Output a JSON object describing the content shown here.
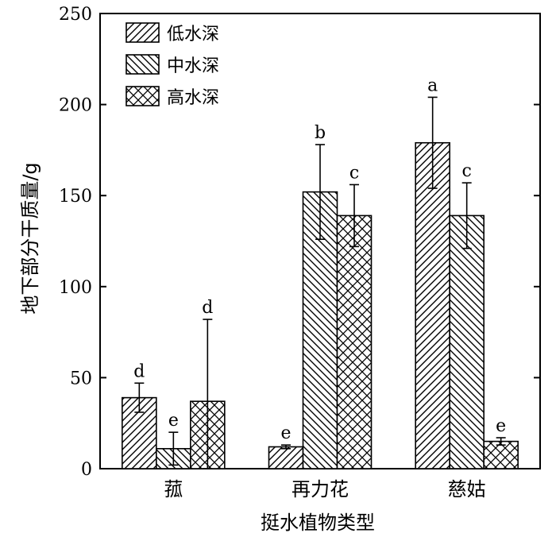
{
  "chart_data": {
    "type": "bar",
    "xlabel": "挺水植物类型",
    "ylabel": "地下部分干质量/g",
    "ylim": [
      0,
      250
    ],
    "yticks": [
      0,
      50,
      100,
      150,
      200,
      250
    ],
    "categories": [
      "菰",
      "再力花",
      "慈姑"
    ],
    "series": [
      {
        "name": "低水深",
        "pattern": "diagonal-up",
        "values": [
          39,
          12,
          179
        ],
        "errors": [
          8,
          1,
          25
        ],
        "labels": [
          "d",
          "e",
          "a"
        ]
      },
      {
        "name": "中水深",
        "pattern": "diagonal-down",
        "values": [
          11,
          152,
          139
        ],
        "errors": [
          9,
          26,
          18
        ],
        "labels": [
          "e",
          "b",
          "c"
        ]
      },
      {
        "name": "高水深",
        "pattern": "crosshatch",
        "values": [
          37,
          139,
          15
        ],
        "errors": [
          45,
          17,
          2
        ],
        "labels": [
          "d",
          "c",
          "e"
        ]
      }
    ],
    "legend_position": "top-left",
    "grid": false
  }
}
